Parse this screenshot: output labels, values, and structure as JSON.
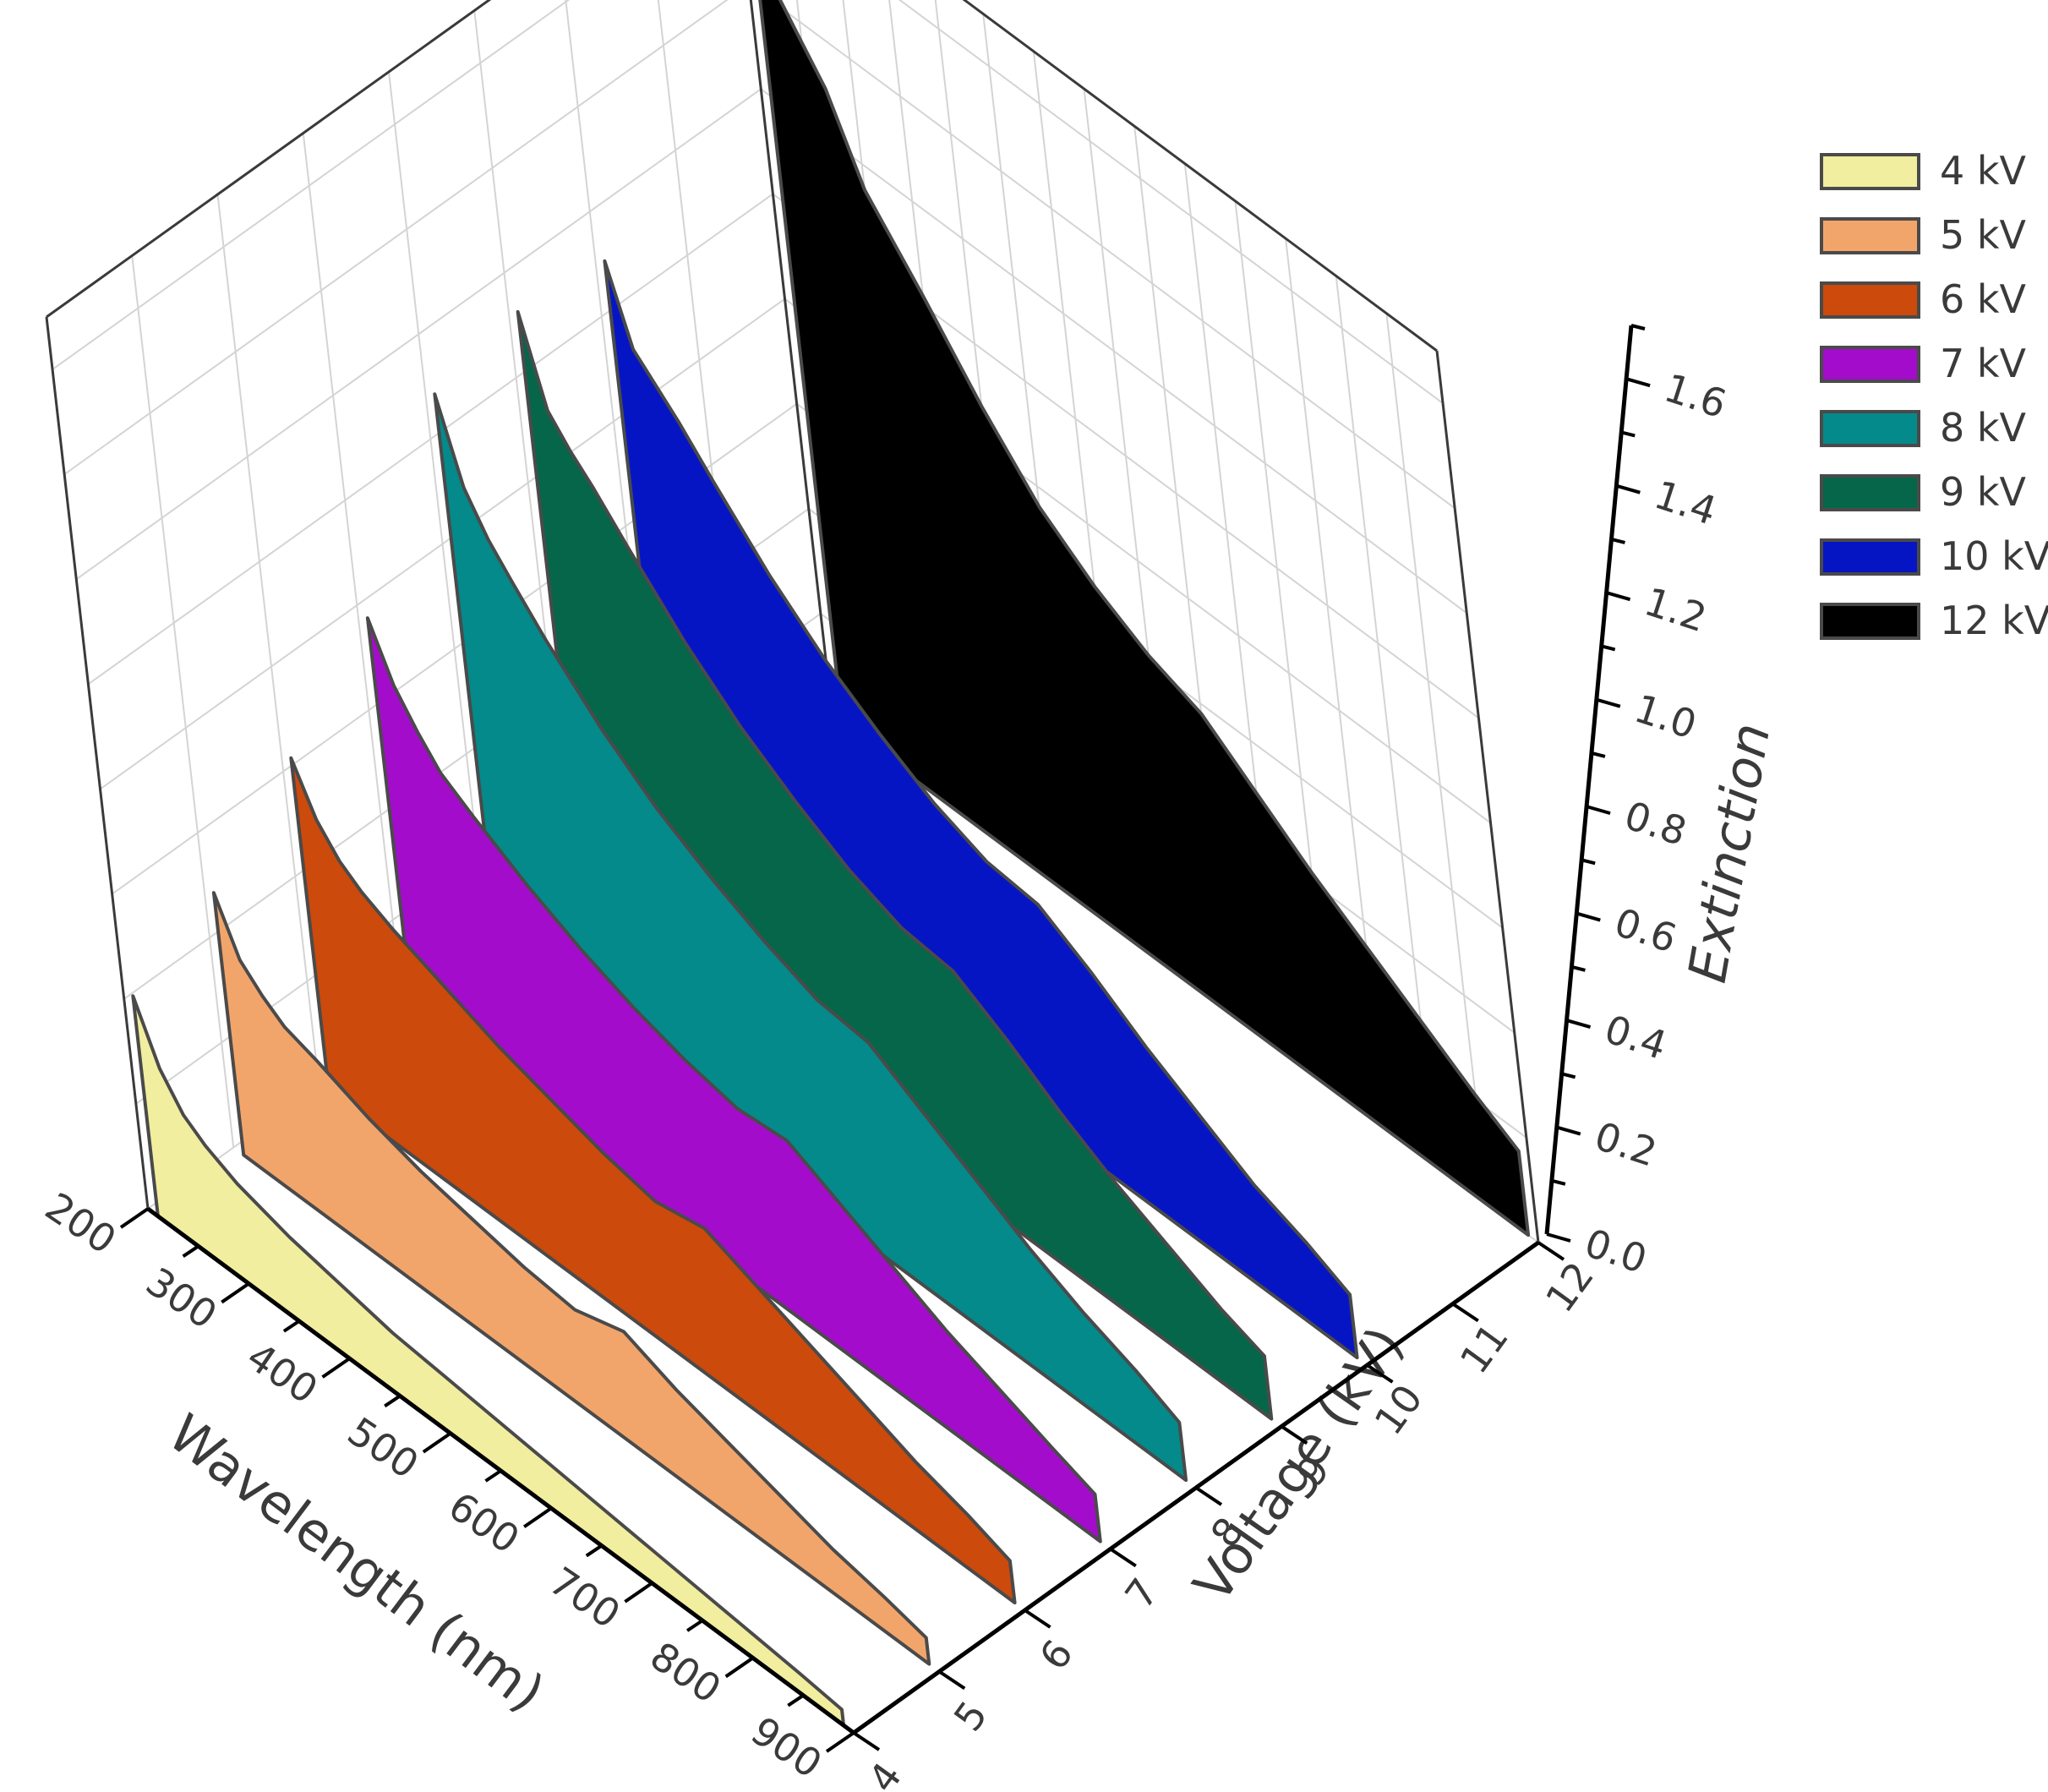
{
  "chart_data": {
    "type": "area",
    "title": "",
    "xlabel": "Wavelength (nm)",
    "zlabel": "Voltage (kV)",
    "ylabel": "Extinction",
    "xlim": [
      200,
      900
    ],
    "ylim": [
      0,
      1.7
    ],
    "x_ticks": [
      "200",
      "300",
      "400",
      "500",
      "600",
      "700",
      "800",
      "900"
    ],
    "z_ticks": [
      "4",
      "5",
      "6",
      "7",
      "8",
      "9",
      "10",
      "11",
      "12"
    ],
    "y_ticks": [
      "0.0",
      "0.2",
      "0.4",
      "0.6",
      "0.8",
      "1.0",
      "1.2",
      "1.4",
      "1.6"
    ],
    "grid": true,
    "legend_position": "top-right",
    "x": [
      210,
      230,
      250,
      270,
      300,
      350,
      400,
      450,
      500,
      550,
      600,
      650,
      700,
      750,
      800,
      850,
      890
    ],
    "series": [
      {
        "name": "4 kV",
        "voltage": 4,
        "color": "#f1ee9f",
        "values": [
          0.42,
          0.31,
          0.25,
          0.22,
          0.19,
          0.16,
          0.14,
          0.12,
          0.11,
          0.1,
          0.09,
          0.08,
          0.07,
          0.06,
          0.05,
          0.04,
          0.03
        ]
      },
      {
        "name": "5 kV",
        "voltage": 5,
        "color": "#f2a56b",
        "values": [
          0.5,
          0.4,
          0.36,
          0.33,
          0.31,
          0.27,
          0.24,
          0.22,
          0.2,
          0.19,
          0.22,
          0.18,
          0.15,
          0.12,
          0.09,
          0.07,
          0.05
        ]
      },
      {
        "name": "6 kV",
        "voltage": 6,
        "color": "#cc4a0b",
        "values": [
          0.64,
          0.55,
          0.5,
          0.47,
          0.44,
          0.4,
          0.36,
          0.33,
          0.3,
          0.28,
          0.3,
          0.26,
          0.22,
          0.18,
          0.14,
          0.11,
          0.08
        ]
      },
      {
        "name": "7 kV",
        "voltage": 7,
        "color": "#a40ccc",
        "values": [
          0.79,
          0.69,
          0.63,
          0.58,
          0.54,
          0.48,
          0.43,
          0.39,
          0.36,
          0.34,
          0.35,
          0.3,
          0.25,
          0.2,
          0.16,
          0.12,
          0.09
        ]
      },
      {
        "name": "8 kV",
        "voltage": 8,
        "color": "#048a8b",
        "values": [
          1.1,
          0.95,
          0.88,
          0.83,
          0.76,
          0.66,
          0.58,
          0.52,
          0.47,
          0.43,
          0.42,
          0.36,
          0.3,
          0.24,
          0.19,
          0.15,
          0.11
        ]
      },
      {
        "name": "9 kV",
        "voltage": 9,
        "color": "#05664a",
        "values": [
          1.14,
          0.98,
          0.93,
          0.89,
          0.82,
          0.71,
          0.62,
          0.55,
          0.49,
          0.45,
          0.44,
          0.38,
          0.31,
          0.25,
          0.2,
          0.15,
          0.12
        ]
      },
      {
        "name": "10 kV",
        "voltage": 10,
        "color": "#0615c4",
        "values": [
          1.12,
          0.98,
          0.94,
          0.9,
          0.83,
          0.72,
          0.63,
          0.56,
          0.5,
          0.46,
          0.45,
          0.39,
          0.32,
          0.26,
          0.2,
          0.16,
          0.12
        ]
      },
      {
        "name": "12 kV",
        "voltage": 12,
        "color": "#000000",
        "values": [
          1.58,
          1.42,
          1.36,
          1.3,
          1.15,
          1.02,
          0.88,
          0.76,
          0.68,
          0.62,
          0.58,
          0.5,
          0.42,
          0.35,
          0.28,
          0.21,
          0.16
        ]
      }
    ]
  }
}
